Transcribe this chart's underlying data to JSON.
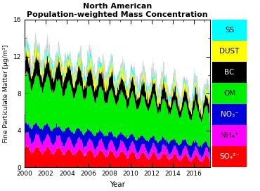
{
  "title_line1": "North American",
  "title_line2": "Population-weighted Mass Concentration",
  "xlabel": "Year",
  "ylabel": "Fine Particulate Matter [μg/m³]",
  "ylim": [
    0,
    16
  ],
  "yticks": [
    0,
    4,
    8,
    12,
    16
  ],
  "year_start": 2000,
  "year_end": 2017,
  "colors": {
    "SO4": "#ff0000",
    "NH4": "#ff00ff",
    "NO3": "#0000dd",
    "OM": "#00ee00",
    "BC": "#000000",
    "DUST": "#ffff00",
    "SS": "#00ffff"
  },
  "legend_labels": [
    "SS",
    "DUST",
    "BC",
    "OM",
    "NO₃⁻",
    "NH₄⁺",
    "SO₄²⁻"
  ],
  "legend_colors": [
    "#00ffff",
    "#ffff00",
    "#000000",
    "#00ee00",
    "#0000dd",
    "#ff00ff",
    "#ff0000"
  ],
  "legend_text_colors": [
    "black",
    "black",
    "white",
    "black",
    "white",
    "black",
    "white"
  ],
  "background_color": "#ffffff",
  "axes_background": "#ffffff"
}
